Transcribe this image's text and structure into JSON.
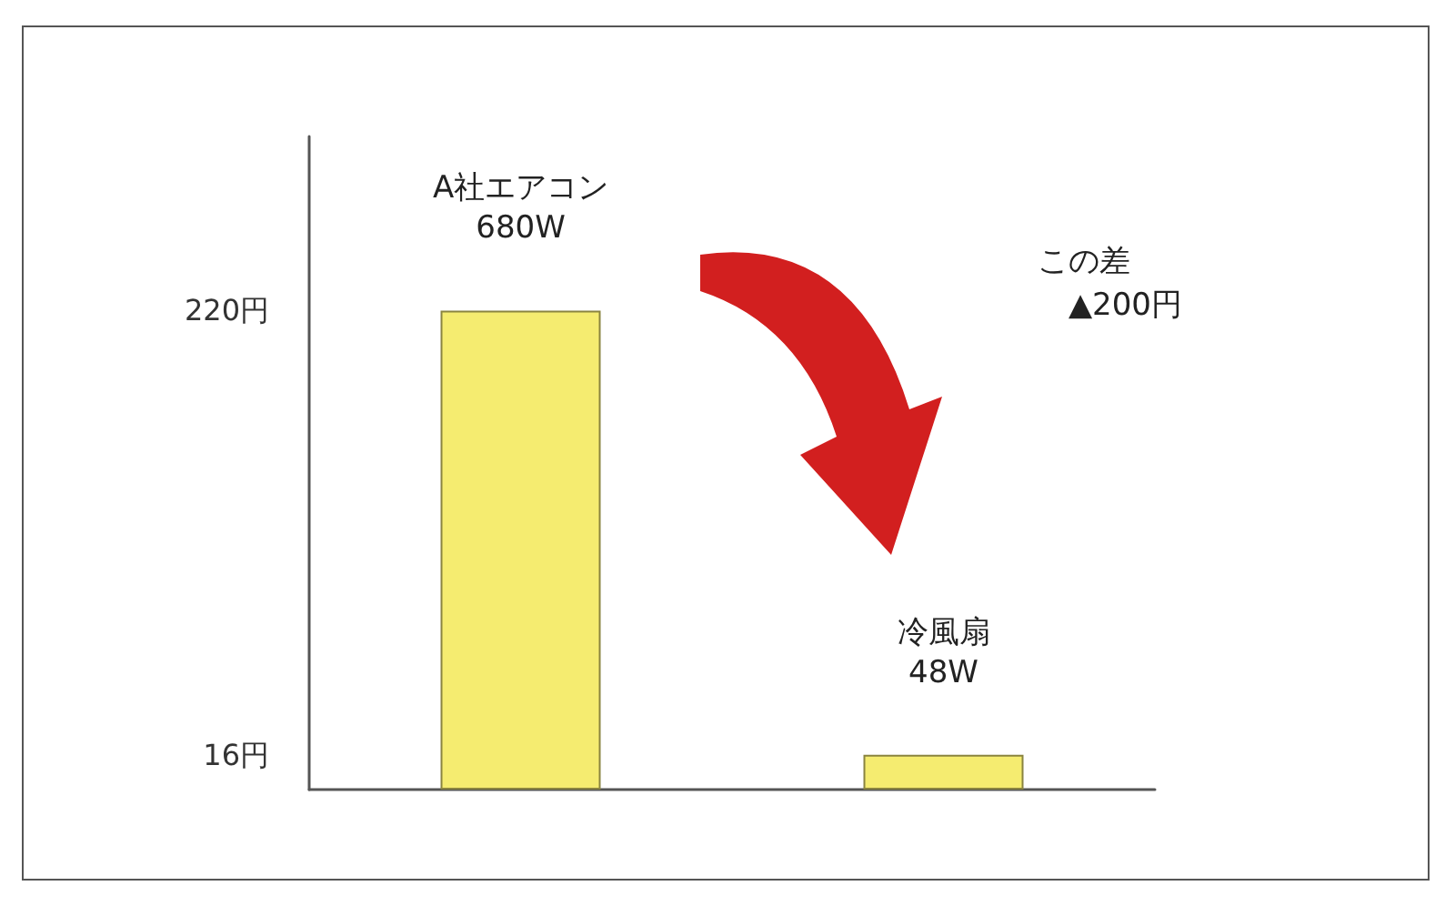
{
  "chart_data": {
    "type": "bar",
    "categories": [
      "A社エアコン\n680W",
      "冷風扇\n48W"
    ],
    "values": [
      220,
      16
    ],
    "color": "#f5ec70",
    "ylim": [
      0,
      300
    ],
    "yticks": [
      {
        "value": 16,
        "label": "16円"
      },
      {
        "value": 220,
        "label": "220円"
      }
    ],
    "tick_labels": "y",
    "grid": false,
    "annotations": [
      "この差\n　▲200円"
    ]
  }
}
